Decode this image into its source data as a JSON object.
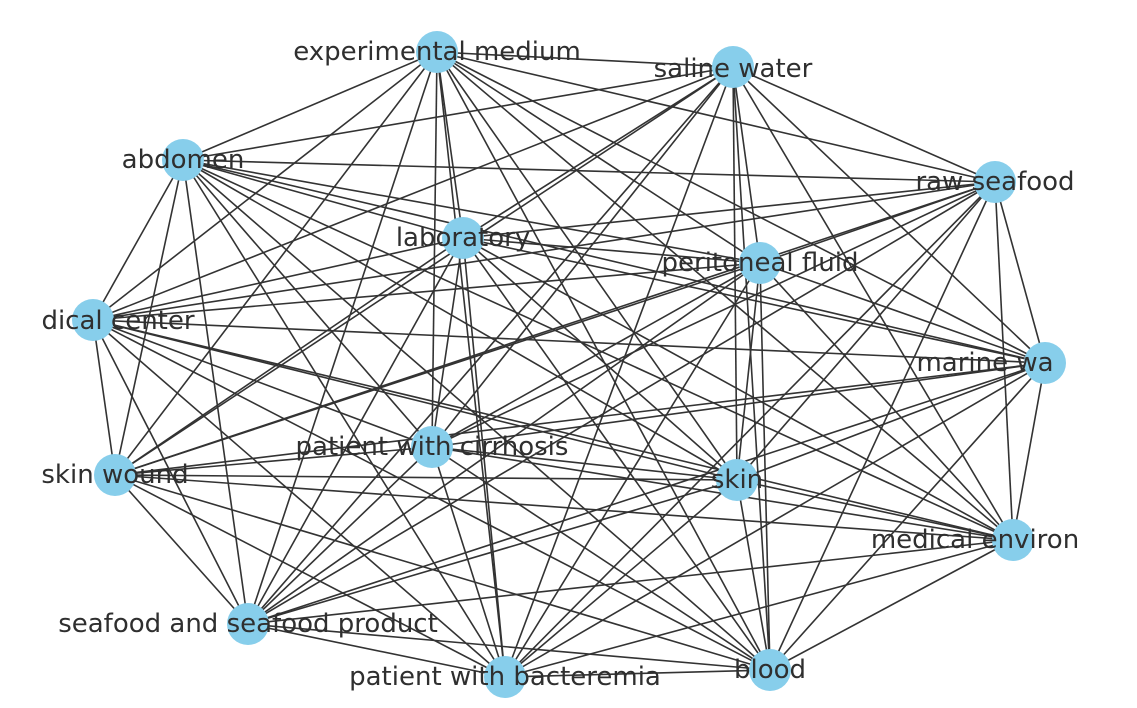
{
  "graph": {
    "node_color": "#87CEEB",
    "edge_color": "#333333",
    "nodes": [
      {
        "id": "experimental_medium",
        "label": "experimental medium"
      },
      {
        "id": "saline_water",
        "label": "saline water"
      },
      {
        "id": "abdomen",
        "label": "abdomen"
      },
      {
        "id": "raw_seafood",
        "label": "raw seafood"
      },
      {
        "id": "laboratory",
        "label": "laboratory"
      },
      {
        "id": "peritoneal_fluid",
        "label": "peritoneal fluid"
      },
      {
        "id": "medical_center",
        "label": "dical center"
      },
      {
        "id": "marine_water",
        "label": "marine wa"
      },
      {
        "id": "patient_with_cirrhosis",
        "label": "patient with cirrhosis"
      },
      {
        "id": "skin_wound",
        "label": "skin wound"
      },
      {
        "id": "skin",
        "label": "skin"
      },
      {
        "id": "medical_environment",
        "label": "medical environ"
      },
      {
        "id": "seafood_and_seafood_product",
        "label": "seafood and seafood product"
      },
      {
        "id": "patient_with_bacteremia",
        "label": "patient with bacteremia"
      },
      {
        "id": "blood",
        "label": "blood"
      }
    ],
    "edges": "complete"
  }
}
